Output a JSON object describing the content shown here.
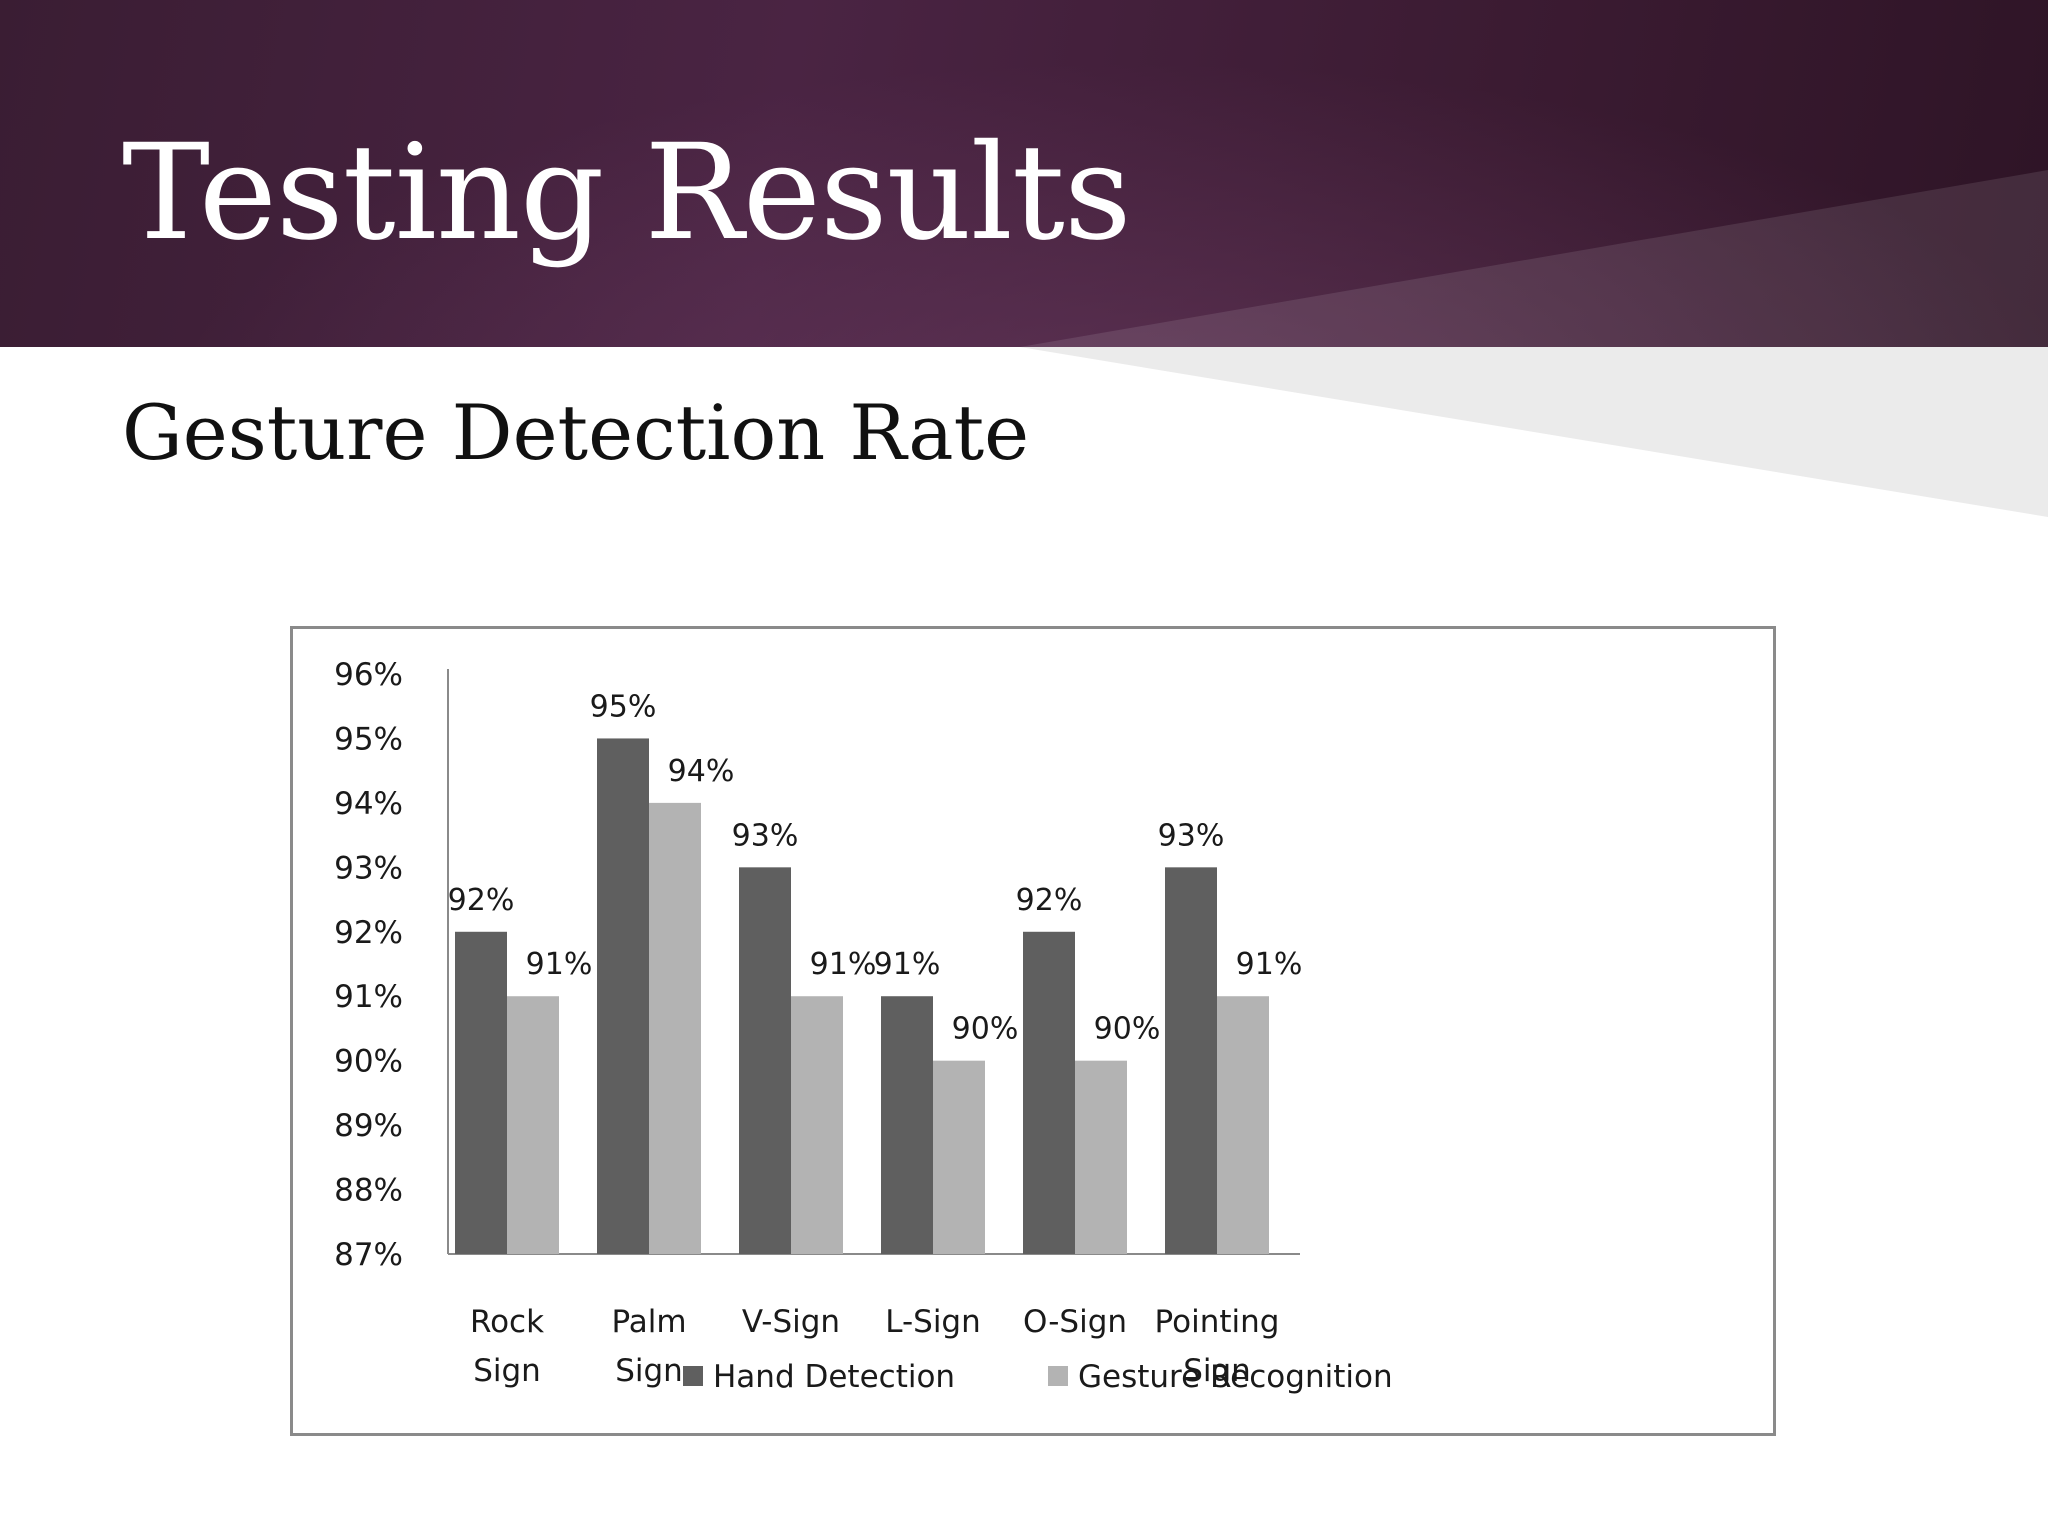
{
  "slide": {
    "title": "Testing Results",
    "subtitle": "Gesture Detection Rate"
  },
  "colors": {
    "header": "#3f1f38",
    "hand_detection": "#5f5f5f",
    "gesture_recognition": "#b3b3b3"
  },
  "chart_data": {
    "type": "bar",
    "title": "",
    "xlabel": "",
    "ylabel": "",
    "ylim": [
      0.87,
      0.96
    ],
    "y_ticks": [
      "87%",
      "88%",
      "89%",
      "90%",
      "91%",
      "92%",
      "93%",
      "94%",
      "95%",
      "96%"
    ],
    "categories": [
      [
        "Rock",
        "Sign"
      ],
      [
        "Palm",
        "Sign"
      ],
      [
        "V-Sign"
      ],
      [
        "L-Sign"
      ],
      [
        "O-Sign"
      ],
      [
        "Pointing",
        "Sign"
      ]
    ],
    "series": [
      {
        "name": "Hand Detection",
        "values": [
          0.92,
          0.95,
          0.93,
          0.91,
          0.92,
          0.93
        ],
        "labels": [
          "92%",
          "95%",
          "93%",
          "91%",
          "92%",
          "93%"
        ]
      },
      {
        "name": "Gesture Recognition",
        "values": [
          0.91,
          0.94,
          0.91,
          0.9,
          0.9,
          0.91
        ],
        "labels": [
          "91%",
          "94%",
          "91%",
          "90%",
          "90%",
          "91%"
        ]
      }
    ],
    "legend": "bottom",
    "grid": false
  }
}
